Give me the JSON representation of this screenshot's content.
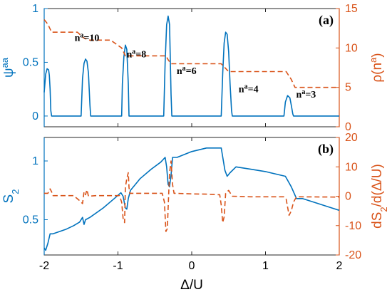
{
  "colors": {
    "left": "#0072BD",
    "right": "#D95319",
    "axes": "#262626"
  },
  "chart_data": [
    {
      "type": "line",
      "panel_label": "(a)",
      "xlim": [
        -2,
        2
      ],
      "x_ticks": [
        -2,
        -1,
        0,
        1,
        2
      ],
      "left_axis": {
        "label_base": "ψ",
        "label_sup": "aa",
        "ylim": [
          -0.1,
          1
        ],
        "ticks": [
          0,
          0.5,
          1
        ],
        "tick_labels": [
          "0",
          "0.5",
          "1"
        ]
      },
      "right_axis": {
        "label_base": "ρ(n",
        "label_sup": "a",
        "label_tail": ")",
        "ylim": [
          0,
          15
        ],
        "ticks": [
          0,
          5,
          10,
          15
        ],
        "tick_labels": [
          "0",
          "5",
          "10",
          "15"
        ]
      },
      "series": [
        {
          "axis": "left",
          "style": "solid",
          "points": [
            [
              -2.0,
              0.22
            ],
            [
              -1.98,
              0.39
            ],
            [
              -1.96,
              0.44
            ],
            [
              -1.94,
              0.43
            ],
            [
              -1.93,
              0.38
            ],
            [
              -1.92,
              0.25
            ],
            [
              -1.91,
              0.05
            ],
            [
              -1.9,
              0.0
            ],
            [
              -1.5,
              0.0
            ],
            [
              -1.48,
              0.35
            ],
            [
              -1.46,
              0.49
            ],
            [
              -1.44,
              0.53
            ],
            [
              -1.42,
              0.51
            ],
            [
              -1.4,
              0.4
            ],
            [
              -1.38,
              0.1
            ],
            [
              -1.37,
              0.0
            ],
            [
              -0.95,
              0.0
            ],
            [
              -0.94,
              0.3
            ],
            [
              -0.92,
              0.55
            ],
            [
              -0.9,
              0.66
            ],
            [
              -0.88,
              0.62
            ],
            [
              -0.86,
              0.3
            ],
            [
              -0.85,
              0.0
            ],
            [
              -0.38,
              0.0
            ],
            [
              -0.36,
              0.5
            ],
            [
              -0.34,
              0.85
            ],
            [
              -0.32,
              0.93
            ],
            [
              -0.3,
              0.85
            ],
            [
              -0.28,
              0.2
            ],
            [
              -0.27,
              0.0
            ],
            [
              0.4,
              0.0
            ],
            [
              0.42,
              0.4
            ],
            [
              0.44,
              0.68
            ],
            [
              0.46,
              0.78
            ],
            [
              0.48,
              0.76
            ],
            [
              0.5,
              0.6
            ],
            [
              0.52,
              0.3
            ],
            [
              0.54,
              0.05
            ],
            [
              0.55,
              0.0
            ],
            [
              1.25,
              0.0
            ],
            [
              1.27,
              0.13
            ],
            [
              1.3,
              0.19
            ],
            [
              1.33,
              0.17
            ],
            [
              1.35,
              0.1
            ],
            [
              1.37,
              0.02
            ],
            [
              1.38,
              0.0
            ],
            [
              2.0,
              0.0
            ]
          ]
        },
        {
          "axis": "right",
          "style": "dashed",
          "points": [
            [
              -2.0,
              13.6
            ],
            [
              -1.95,
              13.0
            ],
            [
              -1.9,
              12.0
            ],
            [
              -1.55,
              12.0
            ],
            [
              -1.47,
              11.3
            ],
            [
              -1.4,
              11.0
            ],
            [
              -1.1,
              11.0
            ],
            [
              -0.95,
              10.0
            ],
            [
              -0.9,
              9.0
            ],
            [
              -0.35,
              9.0
            ],
            [
              -0.32,
              8.5
            ],
            [
              -0.28,
              8.0
            ],
            [
              0.4,
              8.0
            ],
            [
              0.5,
              7.0
            ],
            [
              1.28,
              7.0
            ],
            [
              1.35,
              6.0
            ],
            [
              1.4,
              5.0
            ],
            [
              2.0,
              5.0
            ]
          ]
        }
      ],
      "annotations": [
        {
          "base": "n",
          "sup": "a",
          "tail": "=10",
          "x": -1.42,
          "y": 10.9
        },
        {
          "base": "n",
          "sup": "a",
          "tail": "=8",
          "x": -0.75,
          "y": 8.8
        },
        {
          "base": "n",
          "sup": "a",
          "tail": "=6",
          "x": -0.07,
          "y": 6.7
        },
        {
          "base": "n",
          "sup": "a",
          "tail": "=4",
          "x": 0.77,
          "y": 4.4
        },
        {
          "base": "n",
          "sup": "a",
          "tail": "=3",
          "x": 1.55,
          "y": 3.7
        }
      ]
    },
    {
      "type": "line",
      "panel_label": "(b)",
      "xlim": [
        -2,
        2
      ],
      "x_ticks": [
        -2,
        -1,
        0,
        1,
        2
      ],
      "x_tick_labels": [
        "-2",
        "-1",
        "0",
        "1",
        "2"
      ],
      "xlabel": "Δ/U",
      "left_axis": {
        "label_base": "S",
        "label_sub": "2",
        "ylim": [
          0.2,
          1.2
        ],
        "ticks": [
          0.5,
          1
        ],
        "tick_labels": [
          "0.5",
          "1"
        ]
      },
      "right_axis": {
        "label_a": "dS",
        "label_sub": "2",
        "label_b": "/d(Δ/U)",
        "ylim": [
          -20,
          20
        ],
        "ticks": [
          -20,
          -10,
          0,
          10,
          20
        ],
        "tick_labels": [
          "-20",
          "-10",
          "0",
          "10",
          "20"
        ]
      },
      "series": [
        {
          "axis": "left",
          "style": "solid",
          "points": [
            [
              -2.0,
              0.26
            ],
            [
              -1.98,
              0.24
            ],
            [
              -1.95,
              0.3
            ],
            [
              -1.92,
              0.38
            ],
            [
              -1.88,
              0.38
            ],
            [
              -1.7,
              0.42
            ],
            [
              -1.6,
              0.45
            ],
            [
              -1.52,
              0.48
            ],
            [
              -1.48,
              0.52
            ],
            [
              -1.46,
              0.46
            ],
            [
              -1.44,
              0.5
            ],
            [
              -1.38,
              0.52
            ],
            [
              -1.2,
              0.6
            ],
            [
              -1.05,
              0.68
            ],
            [
              -0.96,
              0.73
            ],
            [
              -0.93,
              0.7
            ],
            [
              -0.9,
              0.6
            ],
            [
              -0.88,
              0.59
            ],
            [
              -0.86,
              0.68
            ],
            [
              -0.83,
              0.75
            ],
            [
              -0.7,
              0.85
            ],
            [
              -0.55,
              0.93
            ],
            [
              -0.42,
              0.99
            ],
            [
              -0.36,
              1.03
            ],
            [
              -0.34,
              0.95
            ],
            [
              -0.32,
              0.8
            ],
            [
              -0.3,
              0.78
            ],
            [
              -0.28,
              0.88
            ],
            [
              -0.26,
              1.03
            ],
            [
              -0.2,
              1.03
            ],
            [
              0.0,
              1.08
            ],
            [
              0.2,
              1.11
            ],
            [
              0.4,
              1.11
            ],
            [
              0.45,
              0.92
            ],
            [
              0.48,
              0.87
            ],
            [
              0.52,
              0.9
            ],
            [
              0.6,
              0.95
            ],
            [
              0.8,
              0.93
            ],
            [
              1.0,
              0.91
            ],
            [
              1.27,
              0.87
            ],
            [
              1.35,
              0.78
            ],
            [
              1.42,
              0.68
            ],
            [
              1.5,
              0.68
            ],
            [
              1.7,
              0.64
            ],
            [
              1.85,
              0.61
            ],
            [
              2.0,
              0.58
            ]
          ]
        },
        {
          "axis": "right",
          "style": "dashed",
          "points": [
            [
              -2.0,
              1.0
            ],
            [
              -1.95,
              1.0
            ],
            [
              -1.92,
              2.5
            ],
            [
              -1.9,
              1.5
            ],
            [
              -1.88,
              0.2
            ],
            [
              -1.6,
              0.2
            ],
            [
              -1.52,
              -1.5
            ],
            [
              -1.48,
              -2.5
            ],
            [
              -1.46,
              1.5
            ],
            [
              -1.44,
              0.5
            ],
            [
              -1.42,
              2.2
            ],
            [
              -1.4,
              0.0
            ],
            [
              -1.3,
              0.2
            ],
            [
              -0.98,
              0.2
            ],
            [
              -0.95,
              -2.0
            ],
            [
              -0.93,
              -7.5
            ],
            [
              -0.91,
              -9.0
            ],
            [
              -0.9,
              3.0
            ],
            [
              -0.88,
              6.0
            ],
            [
              -0.86,
              8.0
            ],
            [
              -0.85,
              3.0
            ],
            [
              -0.84,
              1.0
            ],
            [
              -0.6,
              1.0
            ],
            [
              -0.4,
              1.0
            ],
            [
              -0.37,
              -2.0
            ],
            [
              -0.35,
              -12.0
            ],
            [
              -0.33,
              -11.0
            ],
            [
              -0.32,
              -4.0
            ],
            [
              -0.3,
              8.0
            ],
            [
              -0.28,
              12.0
            ],
            [
              -0.26,
              4.0
            ],
            [
              -0.24,
              1.0
            ],
            [
              0.0,
              0.8
            ],
            [
              0.2,
              0.7
            ],
            [
              0.38,
              0.5
            ],
            [
              0.4,
              -3.0
            ],
            [
              0.42,
              -9.0
            ],
            [
              0.44,
              -7.0
            ],
            [
              0.46,
              1.0
            ],
            [
              0.5,
              2.0
            ],
            [
              0.55,
              0.0
            ],
            [
              0.8,
              -0.2
            ],
            [
              1.0,
              -0.2
            ],
            [
              1.25,
              -0.2
            ],
            [
              1.28,
              -1.0
            ],
            [
              1.32,
              -6.5
            ],
            [
              1.35,
              -5.0
            ],
            [
              1.38,
              -2.0
            ],
            [
              1.42,
              -0.2
            ],
            [
              2.0,
              -0.3
            ]
          ]
        }
      ]
    }
  ]
}
